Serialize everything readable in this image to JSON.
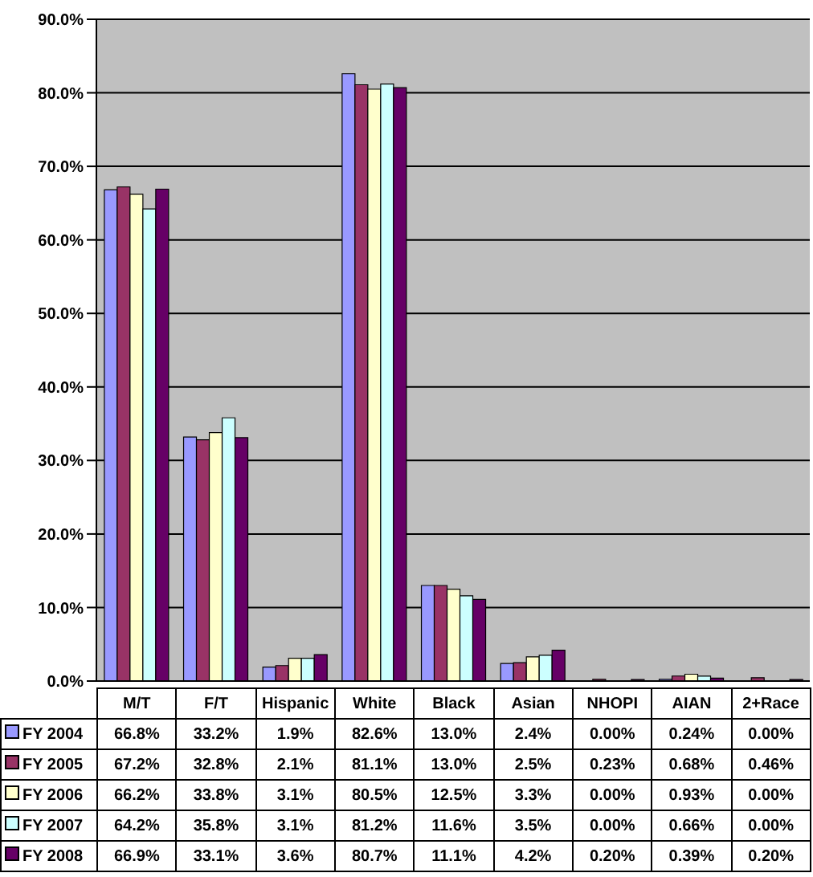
{
  "chart_data": {
    "type": "bar",
    "categories": [
      "M/T",
      "F/T",
      "Hispanic",
      "White",
      "Black",
      "Asian",
      "NHOPI",
      "AIAN",
      "2+Race"
    ],
    "series": [
      {
        "name": "FY 2004",
        "color": "#9999ff",
        "values": [
          66.8,
          33.2,
          1.9,
          82.6,
          13.0,
          2.4,
          0.0,
          0.24,
          0.0
        ],
        "value_labels": [
          "66.8%",
          "33.2%",
          "1.9%",
          "82.6%",
          "13.0%",
          "2.4%",
          "0.00%",
          "0.24%",
          "0.00%"
        ]
      },
      {
        "name": "FY 2005",
        "color": "#993366",
        "values": [
          67.2,
          32.8,
          2.1,
          81.1,
          13.0,
          2.5,
          0.23,
          0.68,
          0.46
        ],
        "value_labels": [
          "67.2%",
          "32.8%",
          "2.1%",
          "81.1%",
          "13.0%",
          "2.5%",
          "0.23%",
          "0.68%",
          "0.46%"
        ]
      },
      {
        "name": "FY 2006",
        "color": "#ffffcc",
        "values": [
          66.2,
          33.8,
          3.1,
          80.5,
          12.5,
          3.3,
          0.0,
          0.93,
          0.0
        ],
        "value_labels": [
          "66.2%",
          "33.8%",
          "3.1%",
          "80.5%",
          "12.5%",
          "3.3%",
          "0.00%",
          "0.93%",
          "0.00%"
        ]
      },
      {
        "name": "FY 2007",
        "color": "#ccffff",
        "values": [
          64.2,
          35.8,
          3.1,
          81.2,
          11.6,
          3.5,
          0.0,
          0.66,
          0.0
        ],
        "value_labels": [
          "64.2%",
          "35.8%",
          "3.1%",
          "81.2%",
          "11.6%",
          "3.5%",
          "0.00%",
          "0.66%",
          "0.00%"
        ]
      },
      {
        "name": "FY 2008",
        "color": "#660066",
        "values": [
          66.9,
          33.1,
          3.6,
          80.7,
          11.1,
          4.2,
          0.2,
          0.39,
          0.2
        ],
        "value_labels": [
          "66.9%",
          "33.1%",
          "3.6%",
          "80.7%",
          "11.1%",
          "4.2%",
          "0.20%",
          "0.39%",
          "0.20%"
        ]
      }
    ],
    "ylim": [
      0,
      90
    ],
    "yticks": [
      {
        "value": 0,
        "label": "0.0%"
      },
      {
        "value": 10,
        "label": "10.0%"
      },
      {
        "value": 20,
        "label": "20.0%"
      },
      {
        "value": 30,
        "label": "30.0%"
      },
      {
        "value": 40,
        "label": "40.0%"
      },
      {
        "value": 50,
        "label": "50.0%"
      },
      {
        "value": 60,
        "label": "60.0%"
      },
      {
        "value": 70,
        "label": "70.0%"
      },
      {
        "value": 80,
        "label": "80.0%"
      },
      {
        "value": 90,
        "label": "90.0%"
      }
    ],
    "grid": "y",
    "legend": "bottom",
    "data_labels": true
  }
}
